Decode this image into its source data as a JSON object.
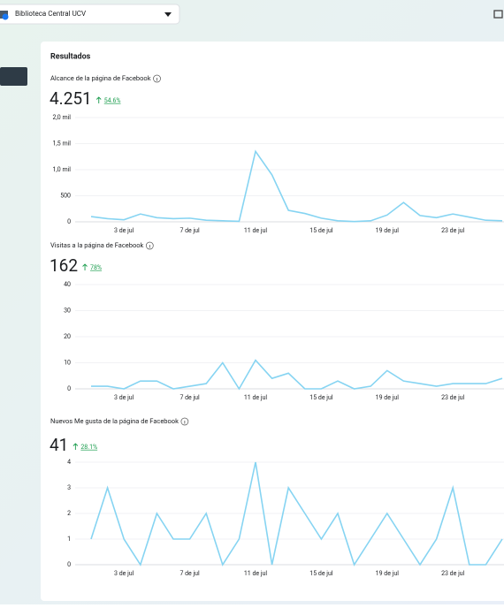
{
  "header": {
    "page_selector": "Biblioteca Central UCV"
  },
  "results_title": "Resultados",
  "chart_data": [
    {
      "type": "line",
      "title": "Alcance de la página de Facebook",
      "metric": "4.251",
      "change": "54.6%",
      "categories": [
        null,
        null,
        "3 de jul",
        null,
        null,
        null,
        "7 de jul",
        null,
        null,
        null,
        "11 de jul",
        null,
        null,
        null,
        "15 de jul",
        null,
        null,
        null,
        "19 de jul",
        null,
        null,
        null,
        "23 de jul",
        null,
        null,
        null
      ],
      "values": [
        100,
        60,
        40,
        150,
        80,
        60,
        70,
        30,
        20,
        10,
        1350,
        900,
        220,
        160,
        70,
        20,
        5,
        20,
        130,
        370,
        120,
        80,
        150,
        90,
        30,
        20
      ],
      "color": "#86d4f2",
      "ylim": [
        0,
        2000
      ],
      "yticks": [
        0,
        500,
        {
          "value": 1000,
          "label": "1,0 mil"
        },
        {
          "value": 1500,
          "label": "1,5 mil"
        },
        {
          "value": 2000,
          "label": "2,0 mil"
        }
      ],
      "grid": true
    },
    {
      "type": "line",
      "title": "Visitas a la página de Facebook",
      "metric": "162",
      "change": "78%",
      "categories": [
        null,
        null,
        "3 de jul",
        null,
        null,
        null,
        "7 de jul",
        null,
        null,
        null,
        "11 de jul",
        null,
        null,
        null,
        "15 de jul",
        null,
        null,
        null,
        "19 de jul",
        null,
        null,
        null,
        "23 de jul",
        null,
        null,
        null
      ],
      "values": [
        1,
        1,
        0,
        3,
        3,
        0,
        1,
        2,
        10,
        0,
        11,
        4,
        6,
        0,
        0,
        3,
        0,
        1,
        7,
        3,
        2,
        1,
        2,
        2,
        2,
        4
      ],
      "color": "#86d4f2",
      "ylim": [
        0,
        40
      ],
      "yticks": [
        0,
        10,
        20,
        30,
        40
      ],
      "grid": true
    },
    {
      "type": "line",
      "title": "Nuevos Me gusta de la página de Facebook",
      "metric": "41",
      "change": "28.1%",
      "categories": [
        null,
        null,
        "3 de jul",
        null,
        null,
        null,
        "7 de jul",
        null,
        null,
        null,
        "11 de jul",
        null,
        null,
        null,
        "15 de jul",
        null,
        null,
        null,
        "19 de jul",
        null,
        null,
        null,
        "23 de jul",
        null,
        null,
        null
      ],
      "values": [
        1,
        3,
        1,
        0,
        2,
        1,
        1,
        2,
        0,
        1,
        4,
        0,
        3,
        2,
        1,
        2,
        0,
        1,
        2,
        1,
        0,
        1,
        3,
        0,
        0,
        1
      ],
      "color": "#86d4f2",
      "ylim": [
        0,
        4
      ],
      "yticks": [
        0,
        1,
        2,
        3,
        4
      ],
      "grid": true
    }
  ]
}
